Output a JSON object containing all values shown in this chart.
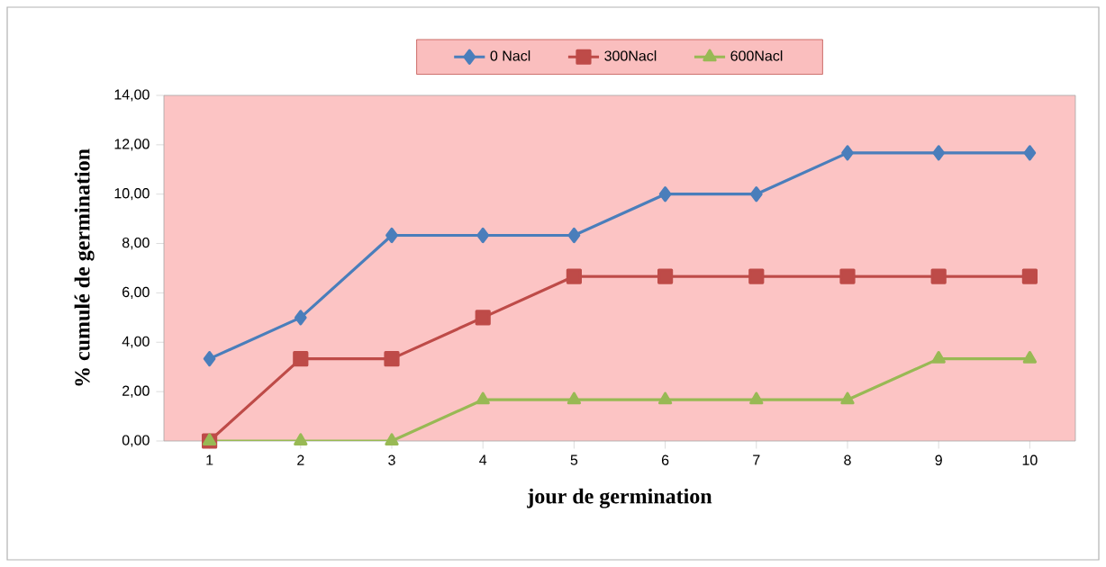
{
  "chart_data": {
    "type": "line",
    "xlabel": "jour de germination",
    "ylabel": "% cumulé de germination",
    "categories": [
      "1",
      "2",
      "3",
      "4",
      "5",
      "6",
      "7",
      "8",
      "9",
      "10"
    ],
    "series": [
      {
        "name": "0 Nacl",
        "color": "#4a7ebb",
        "marker": "diamond",
        "values": [
          3.33,
          5,
          8.33,
          8.33,
          8.33,
          10,
          10,
          11.67,
          11.67,
          11.67
        ]
      },
      {
        "name": "300Nacl",
        "color": "#be4b48",
        "marker": "square",
        "values": [
          0,
          3.33,
          3.33,
          5,
          6.67,
          6.67,
          6.67,
          6.67,
          6.67,
          6.67
        ]
      },
      {
        "name": "600Nacl",
        "color": "#98b954",
        "marker": "triangle",
        "values": [
          0,
          0,
          0,
          1.67,
          1.67,
          1.67,
          1.67,
          1.67,
          3.33,
          3.33
        ]
      }
    ],
    "ylim": [
      0,
      14
    ],
    "yticks": [
      {
        "value": 0,
        "label": "0,00"
      },
      {
        "value": 2,
        "label": "2,00"
      },
      {
        "value": 4,
        "label": "4,00"
      },
      {
        "value": 6,
        "label": "6,00"
      },
      {
        "value": 8,
        "label": "8,00"
      },
      {
        "value": 10,
        "label": "10,00"
      },
      {
        "value": 12,
        "label": "12,00"
      },
      {
        "value": 14,
        "label": "14,00"
      }
    ],
    "grid": false,
    "legend": "top",
    "line_style": "solid"
  }
}
